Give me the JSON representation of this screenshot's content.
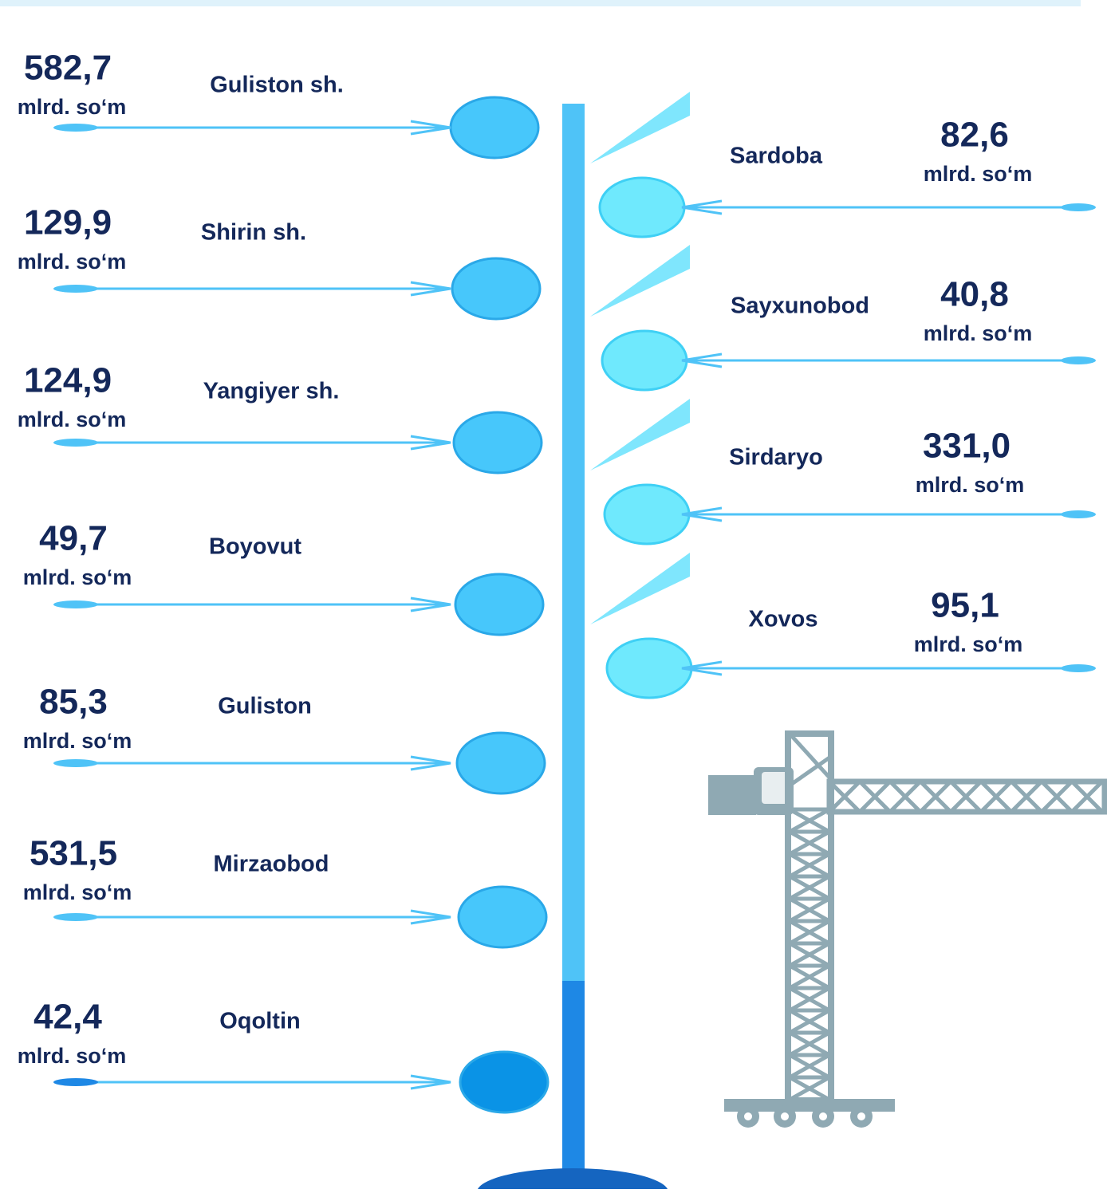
{
  "left": [
    {
      "name": "Guliston sh.",
      "value": "582,7",
      "unit": "mlrd. so‘m"
    },
    {
      "name": "Shirin sh.",
      "value": "129,9",
      "unit": "mlrd. so‘m"
    },
    {
      "name": "Yangiyer sh.",
      "value": "124,9",
      "unit": "mlrd. so‘m"
    },
    {
      "name": "Boyovut",
      "value": "49,7",
      "unit": "mlrd. so‘m"
    },
    {
      "name": "Guliston",
      "value": "85,3",
      "unit": "mlrd. so‘m"
    },
    {
      "name": "Mirzaobod",
      "value": "531,5",
      "unit": "mlrd. so‘m"
    },
    {
      "name": "Oqoltin",
      "value": "42,4",
      "unit": "mlrd. so‘m"
    }
  ],
  "right": [
    {
      "name": "Sardoba",
      "value": "82,6",
      "unit": "mlrd. so‘m"
    },
    {
      "name": "Sayxunobod",
      "value": "40,8",
      "unit": "mlrd. so‘m"
    },
    {
      "name": "Sirdaryo",
      "value": "331,0",
      "unit": "mlrd. so‘m"
    },
    {
      "name": "Xovos",
      "value": "95,1",
      "unit": "mlrd. so‘m"
    }
  ]
}
